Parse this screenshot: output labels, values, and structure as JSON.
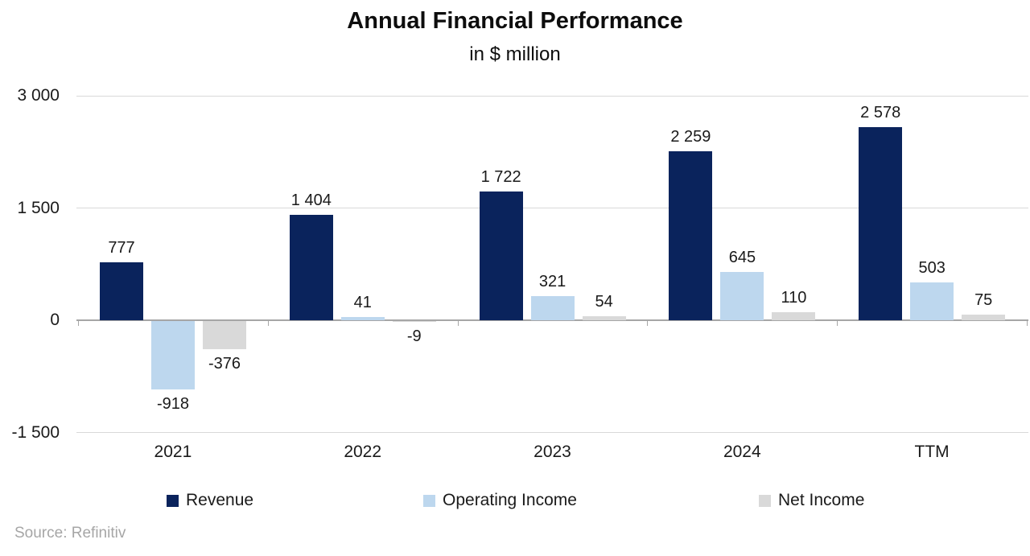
{
  "title": "Annual Financial Performance",
  "subtitle": "in $ million",
  "source": "Source: Refinitiv",
  "chart_data": {
    "type": "bar",
    "title": "Annual Financial Performance",
    "subtitle": "in $ million",
    "categories": [
      "2021",
      "2022",
      "2023",
      "2024",
      "TTM"
    ],
    "series": [
      {
        "name": "Revenue",
        "color": "#0A235C",
        "values": [
          777,
          1404,
          1722,
          2259,
          2578
        ],
        "labels": [
          "777",
          "1 404",
          "1 722",
          "2 259",
          "2 578"
        ]
      },
      {
        "name": "Operating Income",
        "color": "#BDD7EE",
        "values": [
          -918,
          41,
          321,
          645,
          503
        ],
        "labels": [
          "-918",
          "41",
          "321",
          "645",
          "503"
        ]
      },
      {
        "name": "Net Income",
        "color": "#D9D9D9",
        "values": [
          -376,
          -9,
          54,
          110,
          75
        ],
        "labels": [
          "-376",
          "-9",
          "54",
          "110",
          "75"
        ]
      }
    ],
    "ylim": [
      -1500,
      3000
    ],
    "yticks": [
      {
        "value": 3000,
        "label": "3 000"
      },
      {
        "value": 1500,
        "label": "1 500"
      },
      {
        "value": 0,
        "label": "0"
      },
      {
        "value": -1500,
        "label": "-1 500"
      }
    ],
    "grid": true,
    "legend_position": "bottom",
    "axis_color": "#a6a6a6",
    "gridline_color": "#d9d9d9"
  }
}
